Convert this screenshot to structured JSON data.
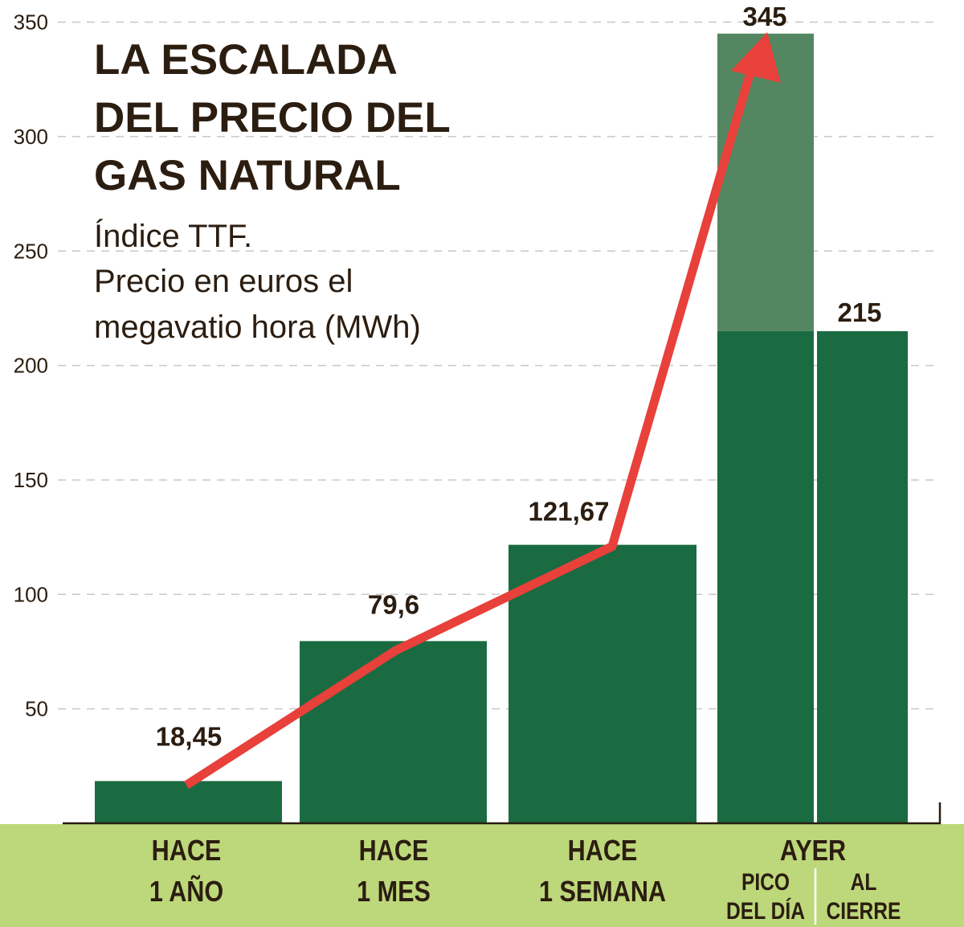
{
  "chart_data": {
    "type": "bar",
    "title": [
      "LA ESCALADA",
      "DEL PRECIO DEL",
      "GAS NATURAL"
    ],
    "subtitle": [
      "Índice TTF.",
      "Precio en euros el",
      "megavatio hora (MWh)"
    ],
    "ylim": [
      0,
      350
    ],
    "yticks": [
      50,
      100,
      150,
      200,
      250,
      300,
      350
    ],
    "grid": true,
    "categories": [
      {
        "lines": [
          "HACE",
          "1 AÑO"
        ]
      },
      {
        "lines": [
          "HACE",
          "1 MES"
        ]
      },
      {
        "lines": [
          "HACE",
          "1 SEMANA"
        ]
      },
      {
        "lines": [
          "AYER"
        ],
        "sub": [
          {
            "lines": [
              "PICO",
              "DEL DÍA"
            ]
          },
          {
            "lines": [
              "AL",
              "CIERRE"
            ]
          }
        ]
      }
    ],
    "bars": [
      {
        "value": 18.45,
        "label": "18,45"
      },
      {
        "value": 79.6,
        "label": "79,6"
      },
      {
        "value": 121.67,
        "label": "121,67"
      },
      {
        "value": 345,
        "label": "345"
      },
      {
        "value": 215,
        "label": "215"
      }
    ],
    "trend_line": [
      18.45,
      79.6,
      121.67,
      345
    ],
    "colors": {
      "bar": "#1a6b41",
      "peak_bar": "#548661",
      "arrow": "#e8403a",
      "band": "#bdd77b",
      "text": "#2b1d10",
      "grid": "#c8c8c8"
    }
  }
}
